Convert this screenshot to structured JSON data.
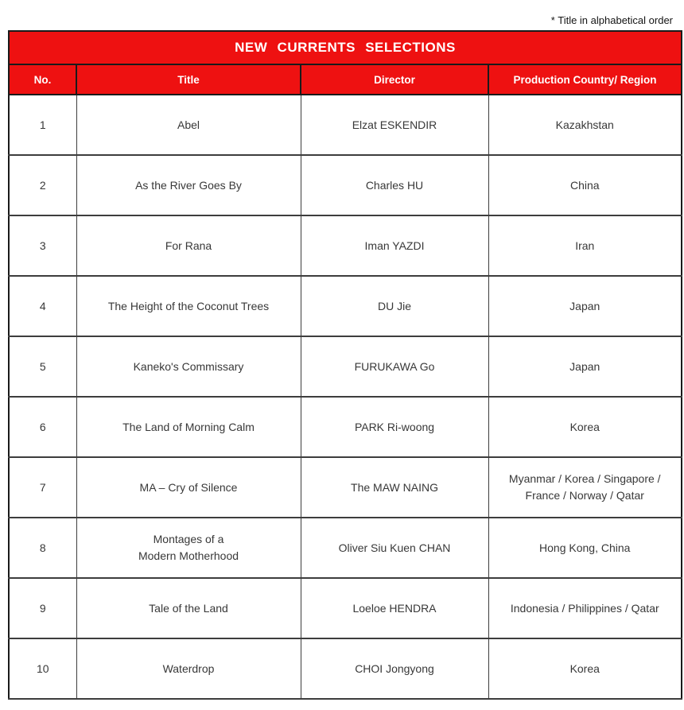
{
  "note": "* Title in alphabetical order",
  "table": {
    "title": "NEW CURRENTS SELECTIONS",
    "columns": [
      "No.",
      "Title",
      "Director",
      "Production Country/ Region"
    ],
    "rows": [
      {
        "no": "1",
        "title": "Abel",
        "director": "Elzat ESKENDIR",
        "country": "Kazakhstan"
      },
      {
        "no": "2",
        "title": "As the River Goes By",
        "director": "Charles HU",
        "country": "China"
      },
      {
        "no": "3",
        "title": "For Rana",
        "director": "Iman YAZDI",
        "country": "Iran"
      },
      {
        "no": "4",
        "title": "The Height of the Coconut Trees",
        "director": "DU Jie",
        "country": "Japan"
      },
      {
        "no": "5",
        "title": "Kaneko's Commissary",
        "director": "FURUKAWA Go",
        "country": "Japan"
      },
      {
        "no": "6",
        "title": "The Land of Morning Calm",
        "director": "PARK Ri-woong",
        "country": "Korea"
      },
      {
        "no": "7",
        "title": "MA – Cry of Silence",
        "director": "The MAW NAING",
        "country": "Myanmar / Korea / Singapore / France / Norway / Qatar"
      },
      {
        "no": "8",
        "title": "Montages of a\nModern Motherhood",
        "director": "Oliver Siu Kuen CHAN",
        "country": "Hong Kong, China"
      },
      {
        "no": "9",
        "title": "Tale of the Land",
        "director": "Loeloe HENDRA",
        "country": "Indonesia / Philippines / Qatar"
      },
      {
        "no": "10",
        "title": "Waterdrop",
        "director": "CHOI Jongyong",
        "country": "Korea"
      }
    ],
    "colors": {
      "header_red": "#ee1111",
      "header_text": "#ffffff",
      "body_text": "#383838",
      "grid": "#3d3d3d"
    }
  }
}
